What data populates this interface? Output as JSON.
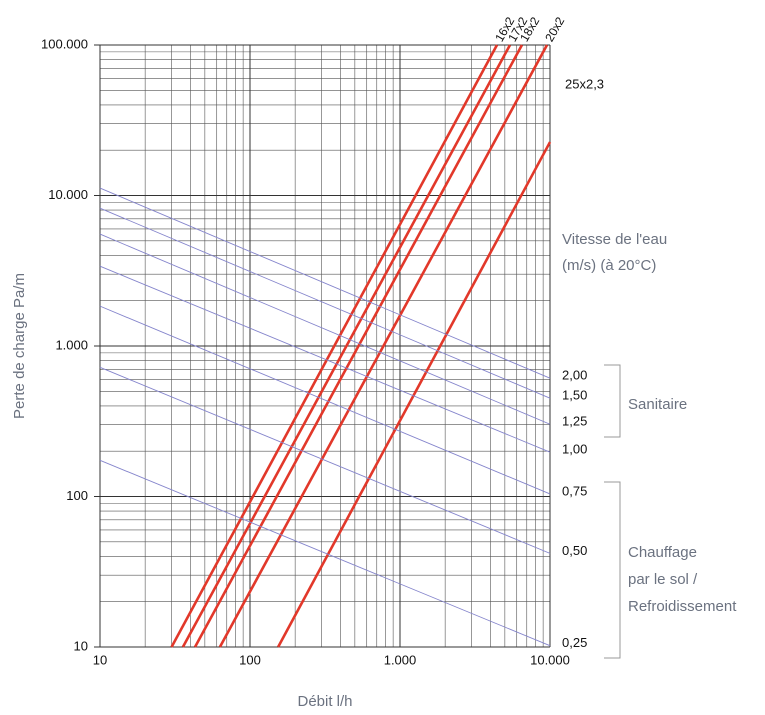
{
  "chart_data": {
    "type": "line",
    "x_label": "Débit l/h",
    "y_label": "Perte de charge Pa/m",
    "xscale": "log",
    "yscale": "log",
    "xlim": [
      10,
      10000
    ],
    "ylim": [
      10,
      100000
    ],
    "xticks": [
      10,
      100,
      {
        "value": 1000,
        "label": "1.000"
      },
      {
        "value": 10000,
        "label": "10.000"
      }
    ],
    "yticks": [
      10,
      100,
      {
        "value": 1000,
        "label": "1.000"
      },
      {
        "value": 10000,
        "label": "10.000"
      },
      {
        "value": 100000,
        "label": "100.000"
      }
    ],
    "x_minor_ticks": [
      20,
      30,
      40,
      50,
      60,
      70,
      80,
      90,
      200,
      300,
      400,
      500,
      600,
      700,
      800,
      900,
      2000,
      3000,
      4000,
      5000,
      6000,
      7000,
      8000,
      9000
    ],
    "y_minor_ticks": [
      20,
      30,
      40,
      50,
      60,
      70,
      80,
      90,
      200,
      300,
      400,
      500,
      600,
      700,
      800,
      900,
      2000,
      3000,
      4000,
      5000,
      6000,
      7000,
      8000,
      9000,
      20000,
      30000,
      40000,
      50000,
      60000,
      70000,
      80000,
      90000
    ],
    "grid": true,
    "series": [
      {
        "name": "16x2",
        "color": "#e2382a",
        "x": [
          30,
          4430
        ],
        "values": [
          10,
          100000
        ]
      },
      {
        "name": "17x2",
        "color": "#e2382a",
        "x": [
          35.7,
          5410
        ],
        "values": [
          10,
          100000
        ]
      },
      {
        "name": "18x2",
        "color": "#e2382a",
        "x": [
          43,
          6500
        ],
        "values": [
          10,
          100000
        ]
      },
      {
        "name": "20x2",
        "color": "#e2382a",
        "x": [
          63,
          9550
        ],
        "values": [
          10,
          100000
        ]
      },
      {
        "name": "25x2,3",
        "color": "#e2382a",
        "x": [
          154,
          10000
        ],
        "values": [
          10,
          22650
        ]
      },
      {
        "name": "2,00",
        "color": "#8585cc",
        "x": [
          10,
          10000
        ],
        "values": [
          11200,
          611
        ]
      },
      {
        "name": "1,50",
        "color": "#8585cc",
        "x": [
          10,
          10000
        ],
        "values": [
          8240,
          450
        ]
      },
      {
        "name": "1,25",
        "color": "#8585cc",
        "x": [
          10,
          10000
        ],
        "values": [
          5540,
          302
        ]
      },
      {
        "name": "1,00",
        "color": "#8585cc",
        "x": [
          10,
          10000
        ],
        "values": [
          3390,
          197
        ]
      },
      {
        "name": "0,75",
        "color": "#8585cc",
        "x": [
          10,
          10000
        ],
        "values": [
          1840,
          104
        ]
      },
      {
        "name": "0,50",
        "color": "#8585cc",
        "x": [
          10,
          10000
        ],
        "values": [
          722,
          41.9
        ]
      },
      {
        "name": "0,25",
        "color": "#8585cc",
        "x": [
          10,
          10000
        ],
        "values": [
          174,
          10.2
        ]
      }
    ],
    "annotations": {
      "velocity_title": [
        "Vitesse de l'eau",
        "(m/s) (à 20°C)"
      ],
      "groups": [
        {
          "label": [
            "Sanitaire"
          ]
        },
        {
          "label": [
            "Chauffage",
            "par le sol /",
            "Refroidissement"
          ]
        }
      ]
    }
  }
}
